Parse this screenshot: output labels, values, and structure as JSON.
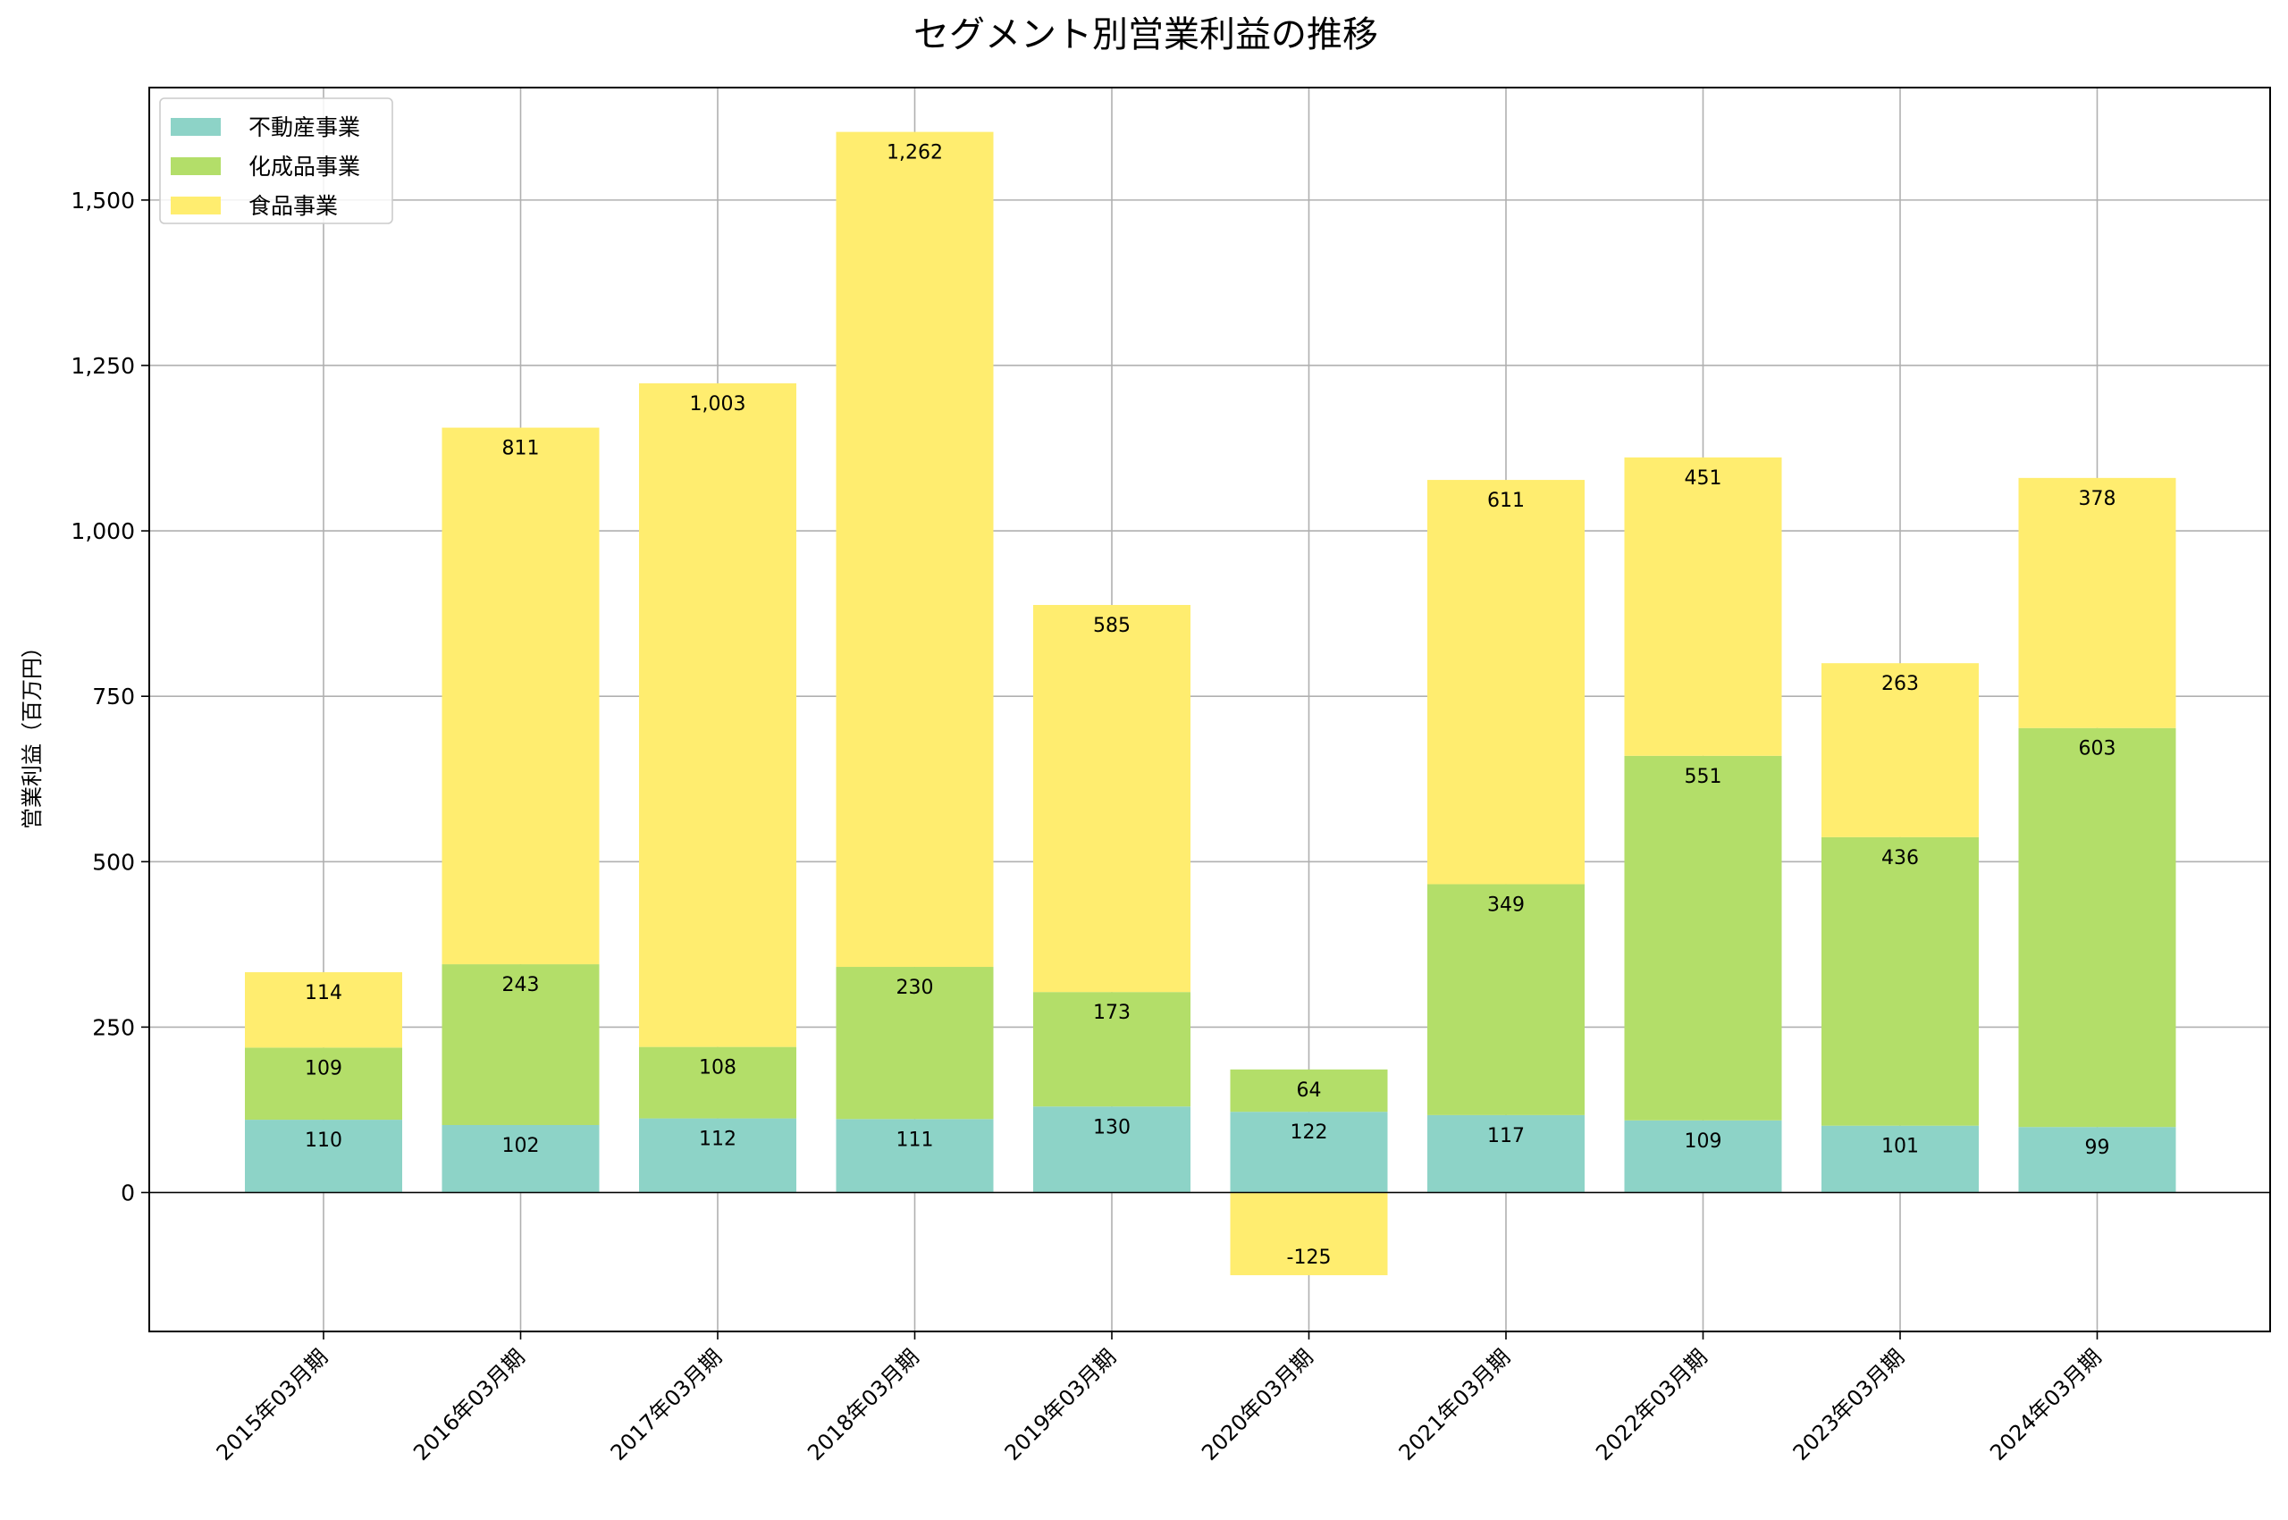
{
  "chart_data": {
    "type": "bar",
    "stacked": true,
    "title": "セグメント別営業利益の推移",
    "xlabel": "",
    "ylabel": "営業利益（百万円）",
    "ylim": [
      -210,
      1670
    ],
    "yticks": [
      0,
      250,
      500,
      750,
      1000,
      1250,
      1500
    ],
    "ytick_labels": [
      "0",
      "250",
      "500",
      "750",
      "1,000",
      "1,250",
      "1,500"
    ],
    "grid": true,
    "legend_position": "top-left",
    "categories": [
      "2015年03月期",
      "2016年03月期",
      "2017年03月期",
      "2018年03月期",
      "2019年03月期",
      "2020年03月期",
      "2021年03月期",
      "2022年03月期",
      "2023年03月期",
      "2024年03月期"
    ],
    "series": [
      {
        "name": "不動産事業",
        "color": "#8dd3c7",
        "values": [
          110,
          102,
          112,
          111,
          130,
          122,
          117,
          109,
          101,
          99
        ],
        "labels": [
          "110",
          "102",
          "112",
          "111",
          "130",
          "122",
          "117",
          "109",
          "101",
          "99"
        ]
      },
      {
        "name": "化成品事業",
        "color": "#b3de69",
        "values": [
          109,
          243,
          108,
          230,
          173,
          64,
          349,
          551,
          436,
          603
        ],
        "labels": [
          "109",
          "243",
          "108",
          "230",
          "173",
          "64",
          "349",
          "551",
          "436",
          "603"
        ]
      },
      {
        "name": "食品事業",
        "color": "#ffed6f",
        "values": [
          114,
          811,
          1003,
          1262,
          585,
          -125,
          611,
          451,
          263,
          378
        ],
        "labels": [
          "114",
          "811",
          "1,003",
          "1,262",
          "585",
          "-125",
          "611",
          "451",
          "263",
          "378"
        ]
      }
    ]
  }
}
